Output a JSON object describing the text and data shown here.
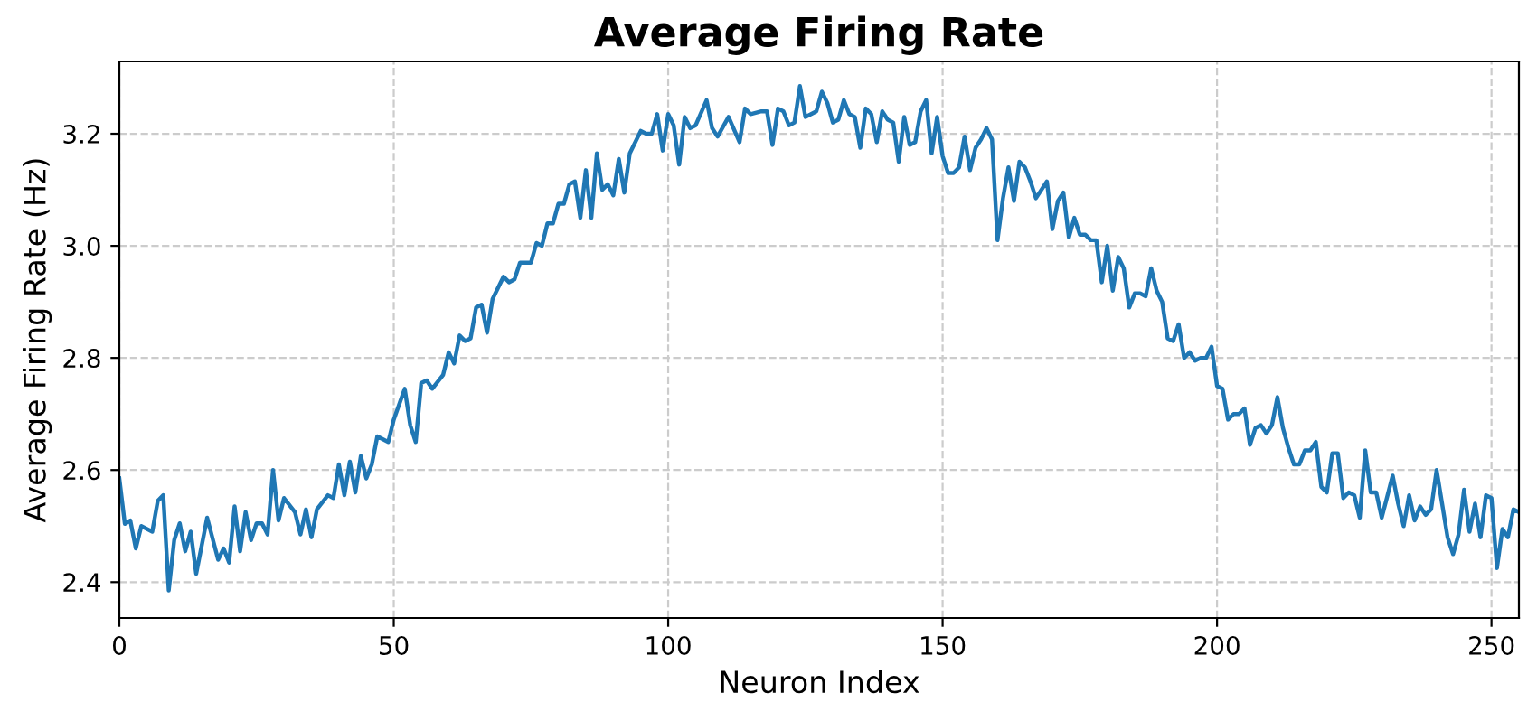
{
  "chart_data": {
    "type": "line",
    "title": "Average Firing Rate",
    "xlabel": "Neuron Index",
    "ylabel": "Average Firing Rate (Hz)",
    "xlim": [
      0,
      255
    ],
    "ylim": [
      2.336,
      3.329
    ],
    "xticks": [
      0,
      50,
      100,
      150,
      200,
      250
    ],
    "yticks": [
      {
        "value": 2.4,
        "label": "2.4"
      },
      {
        "value": 2.6,
        "label": "2.6"
      },
      {
        "value": 2.8,
        "label": "2.8"
      },
      {
        "value": 3.0,
        "label": "3.0"
      },
      {
        "value": 3.2,
        "label": "3.2"
      }
    ],
    "grid": true,
    "line_style": "solid",
    "marker": "none",
    "series": [
      {
        "color": "#1f77b4",
        "x": [
          0,
          1,
          2,
          3,
          4,
          6,
          7,
          8,
          9,
          10,
          11,
          12,
          13,
          14,
          16,
          18,
          19,
          20,
          21,
          22,
          23,
          24,
          25,
          26,
          27,
          28,
          29,
          30,
          32,
          33,
          34,
          35,
          36,
          38,
          39,
          40,
          41,
          42,
          43,
          44,
          45,
          46,
          47,
          49,
          50,
          52,
          53,
          54,
          55,
          56,
          57,
          59,
          60,
          61,
          62,
          63,
          64,
          65,
          66,
          67,
          68,
          70,
          71,
          72,
          73,
          75,
          76,
          77,
          78,
          79,
          80,
          81,
          82,
          83,
          84,
          85,
          86,
          87,
          88,
          89,
          90,
          91,
          92,
          93,
          95,
          96,
          97,
          98,
          99,
          100,
          101,
          102,
          103,
          104,
          105,
          107,
          108,
          109,
          111,
          113,
          114,
          115,
          117,
          118,
          119,
          120,
          121,
          122,
          123,
          124,
          125,
          127,
          128,
          129,
          130,
          131,
          132,
          133,
          134,
          135,
          136,
          137,
          138,
          139,
          140,
          141,
          142,
          143,
          144,
          145,
          146,
          147,
          148,
          149,
          150,
          151,
          152,
          153,
          154,
          155,
          156,
          157,
          158,
          159,
          160,
          161,
          162,
          163,
          164,
          165,
          166,
          167,
          169,
          170,
          171,
          172,
          173,
          174,
          175,
          176,
          177,
          178,
          179,
          180,
          181,
          182,
          183,
          184,
          185,
          186,
          187,
          188,
          189,
          190,
          191,
          192,
          193,
          194,
          195,
          196,
          197,
          198,
          199,
          200,
          201,
          202,
          203,
          204,
          205,
          206,
          207,
          208,
          209,
          210,
          211,
          212,
          213,
          214,
          215,
          216,
          217,
          218,
          219,
          220,
          221,
          222,
          223,
          224,
          225,
          226,
          227,
          228,
          229,
          230,
          232,
          233,
          234,
          235,
          236,
          237,
          238,
          239,
          240,
          241,
          242,
          243,
          244,
          245,
          246,
          247,
          248,
          249,
          250,
          251,
          252,
          253,
          254,
          255
        ],
        "values": [
          2.585,
          2.504,
          2.51,
          2.46,
          2.5,
          2.49,
          2.545,
          2.555,
          2.385,
          2.475,
          2.505,
          2.455,
          2.49,
          2.415,
          2.515,
          2.44,
          2.46,
          2.435,
          2.535,
          2.455,
          2.525,
          2.475,
          2.505,
          2.505,
          2.485,
          2.6,
          2.51,
          2.55,
          2.525,
          2.485,
          2.53,
          2.48,
          2.53,
          2.555,
          2.55,
          2.61,
          2.555,
          2.615,
          2.56,
          2.625,
          2.585,
          2.61,
          2.66,
          2.65,
          2.69,
          2.745,
          2.68,
          2.65,
          2.755,
          2.76,
          2.745,
          2.77,
          2.81,
          2.79,
          2.84,
          2.83,
          2.835,
          2.89,
          2.895,
          2.845,
          2.905,
          2.945,
          2.935,
          2.94,
          2.97,
          2.97,
          3.005,
          3.0,
          3.04,
          3.04,
          3.075,
          3.075,
          3.11,
          3.115,
          3.05,
          3.135,
          3.05,
          3.165,
          3.1,
          3.11,
          3.09,
          3.155,
          3.095,
          3.165,
          3.205,
          3.2,
          3.2,
          3.235,
          3.17,
          3.235,
          3.215,
          3.145,
          3.23,
          3.21,
          3.215,
          3.26,
          3.21,
          3.195,
          3.23,
          3.185,
          3.245,
          3.235,
          3.24,
          3.24,
          3.18,
          3.245,
          3.24,
          3.215,
          3.22,
          3.285,
          3.23,
          3.24,
          3.275,
          3.255,
          3.22,
          3.225,
          3.26,
          3.235,
          3.23,
          3.175,
          3.245,
          3.235,
          3.185,
          3.24,
          3.225,
          3.22,
          3.15,
          3.23,
          3.18,
          3.185,
          3.24,
          3.26,
          3.165,
          3.23,
          3.16,
          3.13,
          3.13,
          3.14,
          3.195,
          3.135,
          3.175,
          3.19,
          3.21,
          3.19,
          3.01,
          3.085,
          3.14,
          3.08,
          3.15,
          3.14,
          3.115,
          3.085,
          3.115,
          3.03,
          3.08,
          3.095,
          3.015,
          3.05,
          3.02,
          3.02,
          3.01,
          3.01,
          2.935,
          3.0,
          2.92,
          2.98,
          2.96,
          2.89,
          2.915,
          2.915,
          2.91,
          2.96,
          2.92,
          2.9,
          2.835,
          2.83,
          2.86,
          2.8,
          2.81,
          2.795,
          2.8,
          2.8,
          2.82,
          2.75,
          2.745,
          2.69,
          2.7,
          2.7,
          2.71,
          2.645,
          2.675,
          2.68,
          2.665,
          2.68,
          2.73,
          2.675,
          2.64,
          2.61,
          2.61,
          2.635,
          2.635,
          2.65,
          2.57,
          2.56,
          2.63,
          2.63,
          2.55,
          2.56,
          2.555,
          2.515,
          2.635,
          2.56,
          2.56,
          2.515,
          2.59,
          2.54,
          2.5,
          2.555,
          2.51,
          2.535,
          2.52,
          2.53,
          2.6,
          2.54,
          2.48,
          2.45,
          2.485,
          2.565,
          2.49,
          2.54,
          2.48,
          2.555,
          2.55,
          2.425,
          2.495,
          2.48,
          2.53,
          2.525
        ]
      }
    ]
  }
}
